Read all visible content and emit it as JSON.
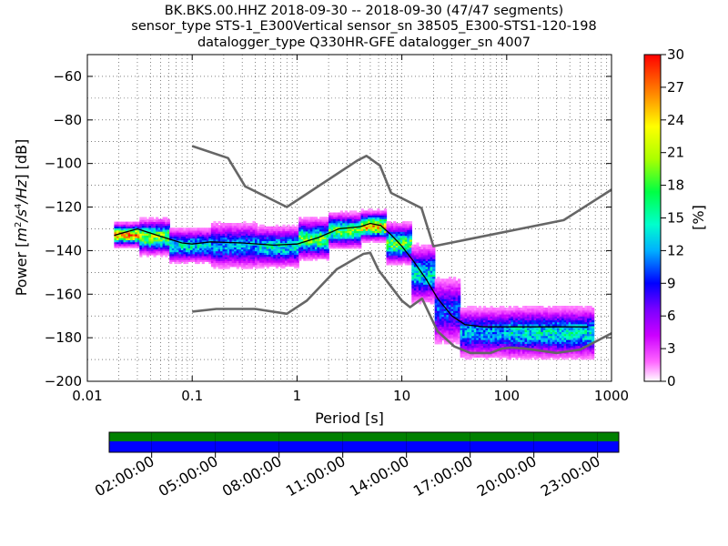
{
  "chart_data": {
    "type": "heatmap",
    "title_lines": [
      "BK.BKS.00.HHZ   2018-09-30 -- 2018-09-30  (47/47 segments)",
      "sensor_type STS-1_E300Vertical sensor_sn 38505_E300-STS1-120-198",
      "datalogger_type Q330HR-GFE datalogger_sn 4007"
    ],
    "xlabel": "Period [s]",
    "ylabel_parts": [
      "Power [",
      "m",
      "2",
      "/",
      "s",
      "4",
      "/",
      "Hz",
      "] [dB]"
    ],
    "x_scale": "log",
    "xlim": [
      0.01,
      1000
    ],
    "ylim": [
      -200,
      -50
    ],
    "x_ticks": [
      {
        "value": 0.01,
        "label": "0.01"
      },
      {
        "value": 0.1,
        "label": "0.1"
      },
      {
        "value": 1,
        "label": "1"
      },
      {
        "value": 10,
        "label": "10"
      },
      {
        "value": 100,
        "label": "100"
      },
      {
        "value": 1000,
        "label": "1000"
      }
    ],
    "y_ticks": [
      {
        "value": -60,
        "label": "−60"
      },
      {
        "value": -80,
        "label": "−80"
      },
      {
        "value": -100,
        "label": "−100"
      },
      {
        "value": -120,
        "label": "−120"
      },
      {
        "value": -140,
        "label": "−140"
      },
      {
        "value": -160,
        "label": "−160"
      },
      {
        "value": -180,
        "label": "−180"
      },
      {
        "value": -200,
        "label": "−200"
      }
    ],
    "colorbar": {
      "label": "[%]",
      "range": [
        0,
        30
      ],
      "ticks": [
        {
          "value": 0,
          "label": "0"
        },
        {
          "value": 3,
          "label": "3"
        },
        {
          "value": 6,
          "label": "6"
        },
        {
          "value": 9,
          "label": "9"
        },
        {
          "value": 12,
          "label": "12"
        },
        {
          "value": 15,
          "label": "15"
        },
        {
          "value": 18,
          "label": "18"
        },
        {
          "value": 21,
          "label": "21"
        },
        {
          "value": 24,
          "label": "24"
        },
        {
          "value": 27,
          "label": "27"
        },
        {
          "value": 30,
          "label": "30"
        }
      ]
    },
    "noise_models": [
      {
        "name": "high-noise-model",
        "color": "#666666",
        "points": [
          [
            0.1,
            -92
          ],
          [
            0.22,
            -97.5
          ],
          [
            0.32,
            -110.5
          ],
          [
            0.8,
            -120
          ],
          [
            3.8,
            -98.5
          ],
          [
            4.6,
            -96.5
          ],
          [
            6.2,
            -101
          ],
          [
            7.9,
            -113.5
          ],
          [
            15.4,
            -120.5
          ],
          [
            20,
            -138
          ],
          [
            350,
            -126
          ],
          [
            1000,
            -112
          ]
        ]
      },
      {
        "name": "low-noise-model",
        "color": "#666666",
        "points": [
          [
            0.1,
            -168
          ],
          [
            0.17,
            -166.8
          ],
          [
            0.4,
            -166.8
          ],
          [
            0.8,
            -169
          ],
          [
            1.24,
            -163
          ],
          [
            2.4,
            -148.5
          ],
          [
            4.3,
            -141.5
          ],
          [
            5.0,
            -141
          ],
          [
            6.0,
            -149
          ],
          [
            10,
            -163
          ],
          [
            12,
            -166
          ],
          [
            15.6,
            -162
          ],
          [
            21.9,
            -177
          ],
          [
            31.6,
            -184
          ],
          [
            45,
            -187
          ],
          [
            70,
            -187
          ],
          [
            90,
            -185
          ],
          [
            110,
            -184.5
          ],
          [
            150,
            -185
          ],
          [
            300,
            -187
          ],
          [
            500,
            -185.5
          ],
          [
            1000,
            -178
          ]
        ]
      }
    ],
    "mean_curve": {
      "name": "median-psd",
      "color": "#000000",
      "points": [
        [
          0.018,
          -133
        ],
        [
          0.03,
          -130
        ],
        [
          0.05,
          -133.5
        ],
        [
          0.08,
          -136.5
        ],
        [
          0.1,
          -137
        ],
        [
          0.15,
          -136
        ],
        [
          0.3,
          -136.5
        ],
        [
          0.6,
          -137.5
        ],
        [
          1,
          -137
        ],
        [
          1.6,
          -134
        ],
        [
          2.5,
          -130
        ],
        [
          4,
          -129
        ],
        [
          5,
          -127.5
        ],
        [
          6.3,
          -128.5
        ],
        [
          8,
          -133
        ],
        [
          10,
          -138
        ],
        [
          13,
          -145
        ],
        [
          17,
          -153
        ],
        [
          22,
          -162
        ],
        [
          30,
          -170
        ],
        [
          40,
          -174
        ],
        [
          60,
          -175
        ],
        [
          100,
          -175
        ],
        [
          200,
          -175
        ],
        [
          400,
          -175
        ],
        [
          600,
          -175
        ]
      ]
    },
    "psd_bands": [
      {
        "x0": 0.018,
        "x1": 0.03,
        "center": -132,
        "width": 4,
        "peak": 25
      },
      {
        "x0": 0.03,
        "x1": 0.06,
        "center": -133,
        "width": 6,
        "peak": 20
      },
      {
        "x0": 0.06,
        "x1": 0.15,
        "center": -137,
        "width": 6,
        "peak": 14
      },
      {
        "x0": 0.15,
        "x1": 0.4,
        "center": -137,
        "width": 8,
        "peak": 12
      },
      {
        "x0": 0.4,
        "x1": 1,
        "center": -137.5,
        "width": 7,
        "peak": 14
      },
      {
        "x0": 1,
        "x1": 2,
        "center": -134,
        "width": 7,
        "peak": 18
      },
      {
        "x0": 2,
        "x1": 4,
        "center": -130,
        "width": 6,
        "peak": 18
      },
      {
        "x0": 4,
        "x1": 7,
        "center": -128,
        "width": 5,
        "peak": 24
      },
      {
        "x0": 7,
        "x1": 12,
        "center": -136,
        "width": 7,
        "peak": 18
      },
      {
        "x0": 12,
        "x1": 20,
        "center": -150,
        "width": 10,
        "peak": 14
      },
      {
        "x0": 20,
        "x1": 35,
        "center": -167,
        "width": 12,
        "peak": 10
      },
      {
        "x0": 35,
        "x1": 100,
        "center": -177,
        "width": 9,
        "peak": 12
      },
      {
        "x0": 100,
        "x1": 650,
        "center": -177,
        "width": 9,
        "peak": 14
      }
    ]
  },
  "timeline": {
    "labels": [
      "02:00:00",
      "05:00:00",
      "08:00:00",
      "11:00:00",
      "14:00:00",
      "17:00:00",
      "20:00:00",
      "23:00:00"
    ],
    "top_color": "#008000",
    "bottom_color": "#0000ff"
  }
}
